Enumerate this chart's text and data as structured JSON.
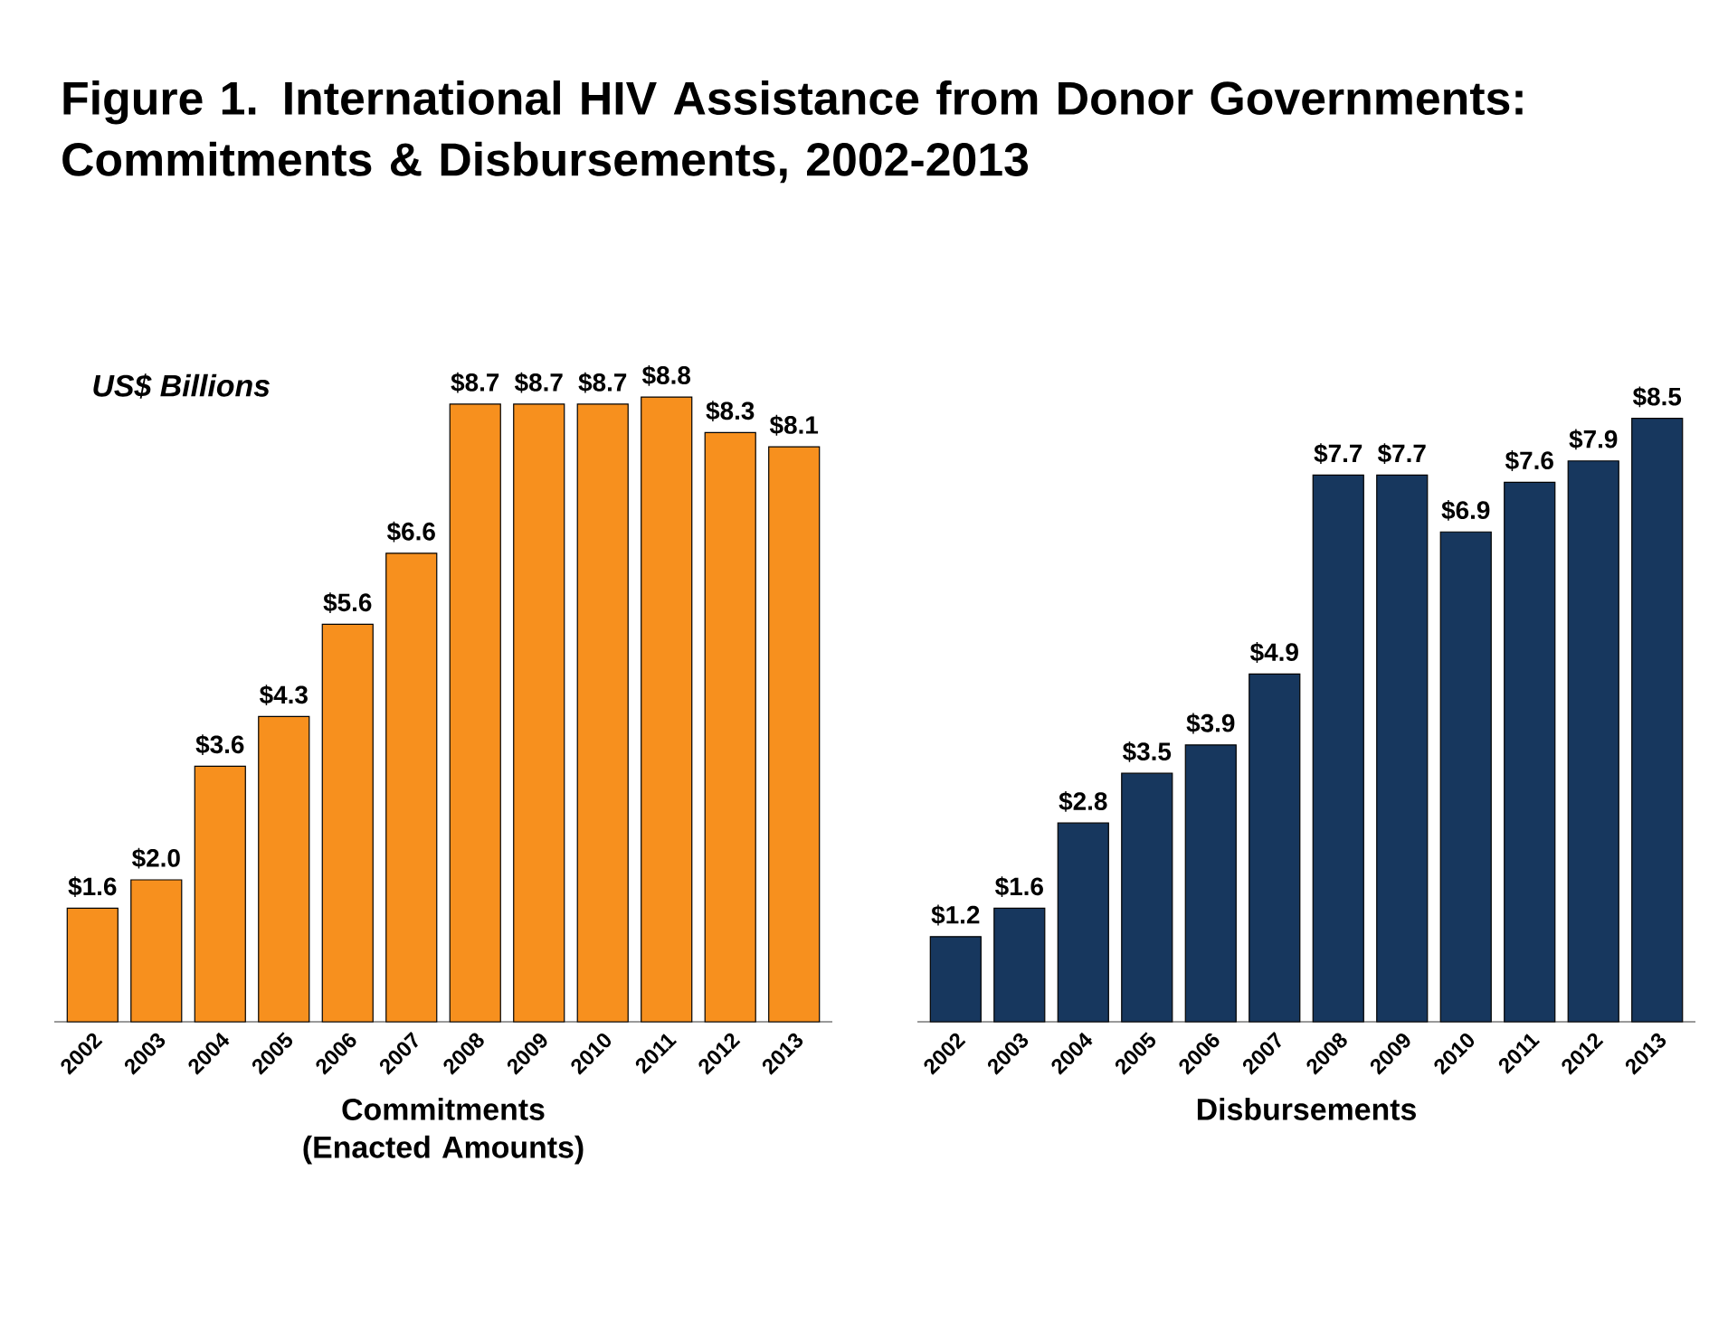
{
  "chart_data": [
    {
      "type": "bar",
      "title": "Figure 1. International HIV Assistance from Donor Governments: Commitments & Disbursements, 2002-2013",
      "ylabel": "US$ Billions",
      "xlabel": "Commitments (Enacted Amounts)",
      "categories": [
        "2002",
        "2003",
        "2004",
        "2005",
        "2006",
        "2007",
        "2008",
        "2009",
        "2010",
        "2011",
        "2012",
        "2013"
      ],
      "values": [
        1.6,
        2.0,
        3.6,
        4.3,
        5.6,
        6.6,
        8.7,
        8.7,
        8.7,
        8.8,
        8.3,
        8.1
      ],
      "color": "#f7901e",
      "value_labels": [
        "$1.6",
        "$2.0",
        "$3.6",
        "$4.3",
        "$5.6",
        "$6.6",
        "$8.7",
        "$8.7",
        "$8.7",
        "$8.8",
        "$8.3",
        "$8.1"
      ]
    },
    {
      "type": "bar",
      "xlabel": "Disbursements",
      "categories": [
        "2002",
        "2003",
        "2004",
        "2005",
        "2006",
        "2007",
        "2008",
        "2009",
        "2010",
        "2011",
        "2012",
        "2013"
      ],
      "values": [
        1.2,
        1.6,
        2.8,
        3.5,
        3.9,
        4.9,
        7.7,
        7.7,
        6.9,
        7.6,
        7.9,
        8.5
      ],
      "color": "#17375e",
      "value_labels": [
        "$1.2",
        "$1.6",
        "$2.8",
        "$3.5",
        "$3.9",
        "$4.9",
        "$7.7",
        "$7.7",
        "$6.9",
        "$7.6",
        "$7.9",
        "$8.5"
      ]
    }
  ]
}
